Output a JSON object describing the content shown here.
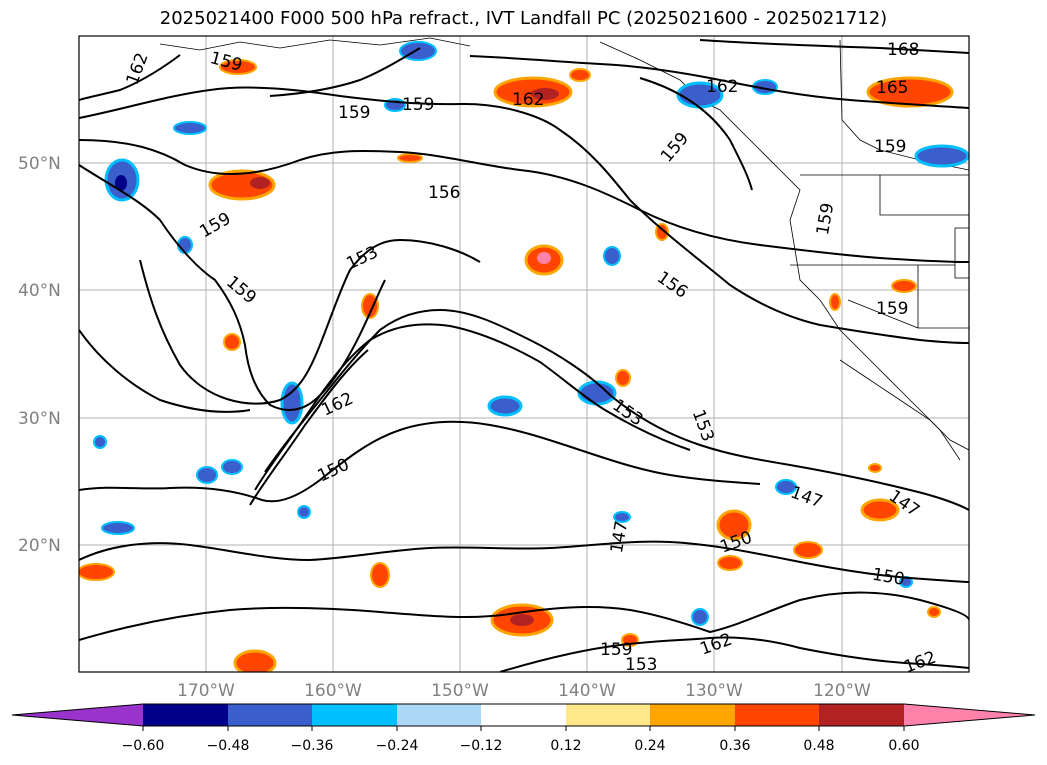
{
  "title": "2025021400 F000 500 hPa refract., IVT Landfall PC (2025021600 - 2025021712)",
  "map": {
    "lat_labels": [
      "50°N",
      "40°N",
      "30°N",
      "20°N"
    ],
    "lon_labels": [
      "170°W",
      "160°W",
      "150°W",
      "140°W",
      "130°W",
      "120°W"
    ],
    "contour_labels": [
      "162",
      "159",
      "159",
      "159",
      "162",
      "162",
      "168",
      "165",
      "159",
      "156",
      "159",
      "153",
      "159",
      "159",
      "156",
      "159",
      "162",
      "150",
      "153",
      "153",
      "147",
      "147",
      "150",
      "150",
      "159",
      "153",
      "162",
      "162",
      "159",
      "147"
    ]
  },
  "colorbar": {
    "colors": [
      "#9933cc",
      "#00008b",
      "#3a5fcd",
      "#00bfff",
      "#add8f5",
      "#ffffff",
      "#ffe88a",
      "#ffa500",
      "#ff4500",
      "#b22222",
      "#ff82ab"
    ],
    "tick_labels": [
      "−0.60",
      "−0.48",
      "−0.36",
      "−0.24",
      "−0.12",
      "0.12",
      "0.24",
      "0.36",
      "0.48",
      "0.60"
    ]
  }
}
